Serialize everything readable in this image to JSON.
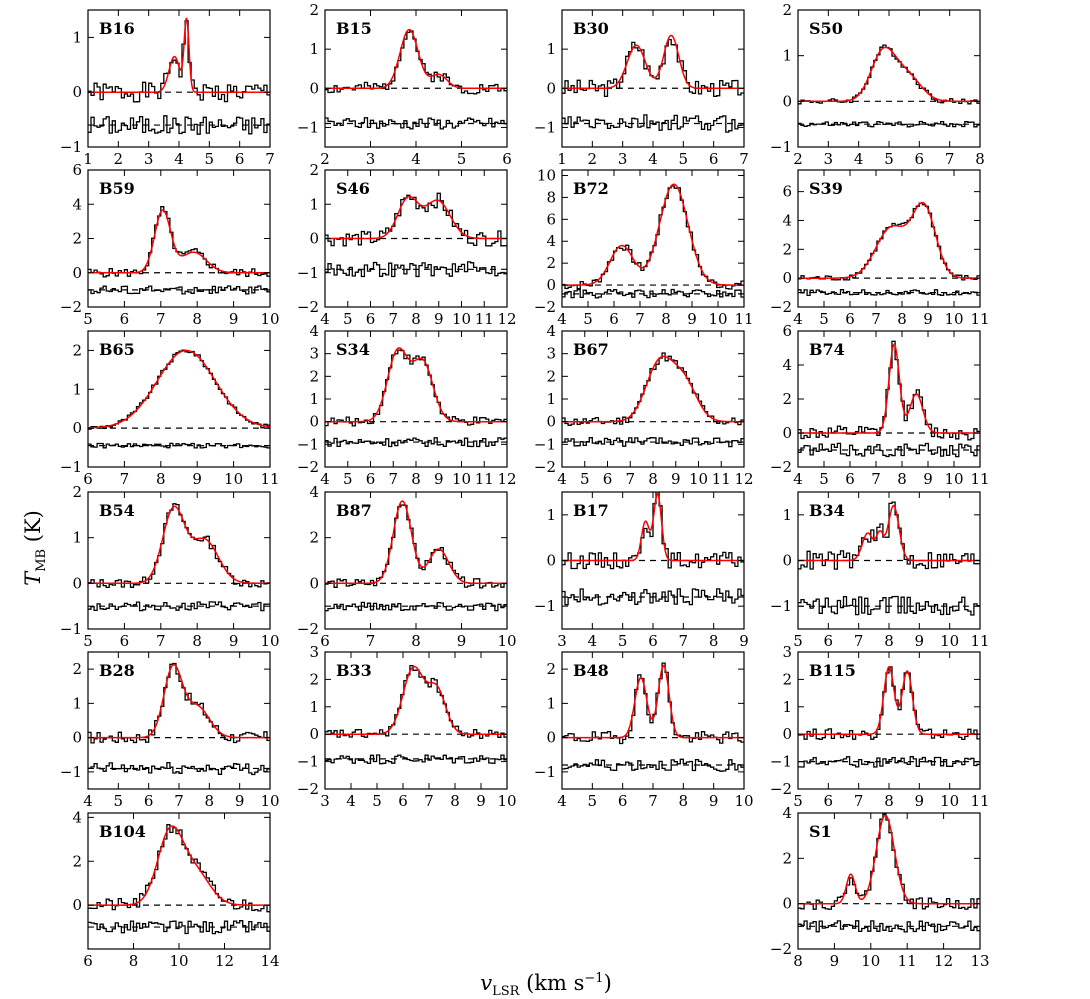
{
  "figure": {
    "ylabel_main": "T",
    "ylabel_sub": "MB",
    "ylabel_unit": " (K)",
    "xlabel_main": "v",
    "xlabel_sub": "LSR",
    "xlabel_unit": " (km s",
    "xlabel_exp": "−1",
    "xlabel_close": ")"
  },
  "colors": {
    "data": "#000000",
    "fit": "#ff0000",
    "zero": "#000000"
  },
  "chart_data": [
    {
      "type": "line",
      "title": "B16",
      "xlim": [
        1,
        7
      ],
      "ylim": [
        -1,
        1.5
      ],
      "xticks": [
        1,
        2,
        3,
        4,
        5,
        6,
        7
      ],
      "yticks": [
        -1,
        0,
        1
      ],
      "residual_offset": -0.6,
      "fit": [
        {
          "mu": 3.85,
          "sig": 0.18,
          "amp": 0.65
        },
        {
          "mu": 4.25,
          "sig": 0.08,
          "amp": 1.3
        }
      ],
      "noise": 0.18,
      "seed": 1
    },
    {
      "type": "line",
      "title": "B15",
      "xlim": [
        2,
        6
      ],
      "ylim": [
        -1.5,
        2
      ],
      "xticks": [
        2,
        3,
        4,
        5,
        6
      ],
      "yticks": [
        -1,
        0,
        1,
        2
      ],
      "residual_offset": -0.9,
      "fit": [
        {
          "mu": 3.85,
          "sig": 0.2,
          "amp": 1.5
        },
        {
          "mu": 4.5,
          "sig": 0.18,
          "amp": 0.35
        }
      ],
      "noise": 0.15,
      "seed": 2
    },
    {
      "type": "line",
      "title": "B30",
      "xlim": [
        1,
        7
      ],
      "ylim": [
        -1.5,
        2
      ],
      "xticks": [
        1,
        2,
        3,
        4,
        5,
        6,
        7
      ],
      "yticks": [
        -1,
        0,
        1
      ],
      "residual_offset": -0.9,
      "fit": [
        {
          "mu": 3.45,
          "sig": 0.3,
          "amp": 1.1
        },
        {
          "mu": 4.6,
          "sig": 0.25,
          "amp": 1.35
        }
      ],
      "noise": 0.22,
      "seed": 3
    },
    {
      "type": "line",
      "title": "S50",
      "xlim": [
        2,
        8
      ],
      "ylim": [
        -1,
        2
      ],
      "xticks": [
        2,
        3,
        4,
        5,
        6,
        7,
        8
      ],
      "yticks": [
        -1,
        0,
        1,
        2
      ],
      "residual_offset": -0.5,
      "fit": [
        {
          "mu": 4.8,
          "sig": 0.4,
          "amp": 1.05
        },
        {
          "mu": 5.6,
          "sig": 0.45,
          "amp": 0.55
        }
      ],
      "noise": 0.06,
      "seed": 4
    },
    {
      "type": "line",
      "title": "B59",
      "xlim": [
        5,
        10
      ],
      "ylim": [
        -2,
        6
      ],
      "xticks": [
        5,
        6,
        7,
        8,
        9,
        10
      ],
      "yticks": [
        -2,
        0,
        2,
        4,
        6
      ],
      "residual_offset": -1.0,
      "fit": [
        {
          "mu": 7.05,
          "sig": 0.22,
          "amp": 3.6
        },
        {
          "mu": 7.9,
          "sig": 0.35,
          "amp": 1.2
        }
      ],
      "noise": 0.25,
      "seed": 5
    },
    {
      "type": "line",
      "title": "S46",
      "xlim": [
        4,
        12
      ],
      "ylim": [
        -2,
        2
      ],
      "xticks": [
        4,
        5,
        6,
        7,
        8,
        9,
        10,
        11,
        12
      ],
      "yticks": [
        -2,
        -1,
        0,
        1,
        2
      ],
      "residual_offset": -0.9,
      "fit": [
        {
          "mu": 7.65,
          "sig": 0.45,
          "amp": 1.15
        },
        {
          "mu": 8.95,
          "sig": 0.55,
          "amp": 1.1
        }
      ],
      "noise": 0.22,
      "seed": 6
    },
    {
      "type": "line",
      "title": "B72",
      "xlim": [
        4,
        11
      ],
      "ylim": [
        -2,
        10.5
      ],
      "xticks": [
        4,
        5,
        6,
        7,
        8,
        9,
        10,
        11
      ],
      "yticks": [
        -2,
        0,
        2,
        4,
        6,
        8,
        10
      ],
      "residual_offset": -0.8,
      "fit": [
        {
          "mu": 6.3,
          "sig": 0.45,
          "amp": 3.6
        },
        {
          "mu": 8.3,
          "sig": 0.55,
          "amp": 9.2
        }
      ],
      "noise": 0.4,
      "seed": 7
    },
    {
      "type": "line",
      "title": "S39",
      "xlim": [
        4,
        11
      ],
      "ylim": [
        -2,
        7.5
      ],
      "xticks": [
        4,
        5,
        6,
        7,
        8,
        9,
        10,
        11
      ],
      "yticks": [
        -2,
        0,
        2,
        4,
        6
      ],
      "residual_offset": -1.0,
      "fit": [
        {
          "mu": 7.6,
          "sig": 0.6,
          "amp": 3.5
        },
        {
          "mu": 8.85,
          "sig": 0.45,
          "amp": 4.8
        }
      ],
      "noise": 0.2,
      "seed": 8
    },
    {
      "type": "line",
      "title": "B65",
      "xlim": [
        6,
        11
      ],
      "ylim": [
        -1,
        2.5
      ],
      "xticks": [
        6,
        7,
        8,
        9,
        10,
        11
      ],
      "yticks": [
        -1,
        0,
        1,
        2
      ],
      "residual_offset": -0.45,
      "fit": [
        {
          "mu": 8.7,
          "sig": 0.8,
          "amp": 2.0
        }
      ],
      "noise": 0.06,
      "seed": 9
    },
    {
      "type": "line",
      "title": "S34",
      "xlim": [
        4,
        12
      ],
      "ylim": [
        -2,
        4
      ],
      "xticks": [
        4,
        5,
        6,
        7,
        8,
        9,
        10,
        11,
        12
      ],
      "yticks": [
        -2,
        -1,
        0,
        1,
        2,
        3,
        4
      ],
      "residual_offset": -0.9,
      "fit": [
        {
          "mu": 7.2,
          "sig": 0.45,
          "amp": 3.1
        },
        {
          "mu": 8.3,
          "sig": 0.45,
          "amp": 2.6
        }
      ],
      "noise": 0.2,
      "seed": 10
    },
    {
      "type": "line",
      "title": "B67",
      "xlim": [
        4,
        12
      ],
      "ylim": [
        -2,
        4
      ],
      "xticks": [
        4,
        5,
        6,
        7,
        8,
        9,
        10,
        11,
        12
      ],
      "yticks": [
        -2,
        -1,
        0,
        1,
        2,
        3,
        4
      ],
      "residual_offset": -0.9,
      "fit": [
        {
          "mu": 8.3,
          "sig": 0.6,
          "amp": 2.6
        },
        {
          "mu": 9.4,
          "sig": 0.55,
          "amp": 1.6
        }
      ],
      "noise": 0.2,
      "seed": 11
    },
    {
      "type": "line",
      "title": "B74",
      "xlim": [
        4,
        11
      ],
      "ylim": [
        -2,
        6
      ],
      "xticks": [
        4,
        5,
        6,
        7,
        8,
        9,
        10,
        11
      ],
      "yticks": [
        -2,
        0,
        2,
        4,
        6
      ],
      "residual_offset": -1.0,
      "fit": [
        {
          "mu": 7.7,
          "sig": 0.2,
          "amp": 5.2
        },
        {
          "mu": 8.55,
          "sig": 0.25,
          "amp": 2.3
        }
      ],
      "noise": 0.4,
      "seed": 12
    },
    {
      "type": "line",
      "title": "B54",
      "xlim": [
        5,
        10
      ],
      "ylim": [
        -1,
        2
      ],
      "xticks": [
        5,
        6,
        7,
        8,
        9,
        10
      ],
      "yticks": [
        -1,
        0,
        1,
        2
      ],
      "residual_offset": -0.5,
      "fit": [
        {
          "mu": 7.35,
          "sig": 0.3,
          "amp": 1.6
        },
        {
          "mu": 8.2,
          "sig": 0.38,
          "amp": 0.95
        }
      ],
      "noise": 0.1,
      "seed": 13
    },
    {
      "type": "line",
      "title": "B87",
      "xlim": [
        6,
        10
      ],
      "ylim": [
        -2,
        4
      ],
      "xticks": [
        6,
        7,
        8,
        9,
        10
      ],
      "yticks": [
        -2,
        0,
        2,
        4
      ],
      "residual_offset": -1.0,
      "fit": [
        {
          "mu": 7.7,
          "sig": 0.2,
          "amp": 3.6
        },
        {
          "mu": 8.5,
          "sig": 0.22,
          "amp": 1.5
        }
      ],
      "noise": 0.2,
      "seed": 14
    },
    {
      "type": "line",
      "title": "B17",
      "xlim": [
        3,
        9
      ],
      "ylim": [
        -1.5,
        1.5
      ],
      "xticks": [
        3,
        4,
        5,
        6,
        7,
        8,
        9
      ],
      "yticks": [
        -1,
        0,
        1
      ],
      "residual_offset": -0.8,
      "fit": [
        {
          "mu": 5.75,
          "sig": 0.13,
          "amp": 0.85
        },
        {
          "mu": 6.15,
          "sig": 0.13,
          "amp": 1.45
        }
      ],
      "noise": 0.18,
      "seed": 15
    },
    {
      "type": "line",
      "title": "B34",
      "xlim": [
        5,
        11
      ],
      "ylim": [
        -1.5,
        1.5
      ],
      "xticks": [
        5,
        6,
        7,
        8,
        9,
        10,
        11
      ],
      "yticks": [
        -1,
        0,
        1
      ],
      "residual_offset": -1.0,
      "fit": [
        {
          "mu": 7.3,
          "sig": 0.18,
          "amp": 0.6
        },
        {
          "mu": 7.7,
          "sig": 0.12,
          "amp": 0.55
        },
        {
          "mu": 8.15,
          "sig": 0.18,
          "amp": 1.2
        }
      ],
      "noise": 0.22,
      "seed": 16
    },
    {
      "type": "line",
      "title": "B28",
      "xlim": [
        4,
        10
      ],
      "ylim": [
        -1.5,
        2.5
      ],
      "xticks": [
        4,
        5,
        6,
        7,
        8,
        9,
        10
      ],
      "yticks": [
        -1,
        0,
        1,
        2
      ],
      "residual_offset": -0.9,
      "fit": [
        {
          "mu": 6.8,
          "sig": 0.3,
          "amp": 2.0
        },
        {
          "mu": 7.6,
          "sig": 0.4,
          "amp": 0.9
        }
      ],
      "noise": 0.18,
      "seed": 17
    },
    {
      "type": "line",
      "title": "B33",
      "xlim": [
        3,
        10
      ],
      "ylim": [
        -2,
        3
      ],
      "xticks": [
        3,
        4,
        5,
        6,
        7,
        8,
        9,
        10
      ],
      "yticks": [
        -2,
        -1,
        0,
        1,
        2,
        3
      ],
      "residual_offset": -0.9,
      "fit": [
        {
          "mu": 6.4,
          "sig": 0.4,
          "amp": 2.4
        },
        {
          "mu": 7.3,
          "sig": 0.35,
          "amp": 1.6
        }
      ],
      "noise": 0.18,
      "seed": 18
    },
    {
      "type": "line",
      "title": "B48",
      "xlim": [
        4,
        10
      ],
      "ylim": [
        -1.5,
        2.5
      ],
      "xticks": [
        4,
        5,
        6,
        7,
        8,
        9,
        10
      ],
      "yticks": [
        -1,
        0,
        1,
        2
      ],
      "residual_offset": -0.8,
      "fit": [
        {
          "mu": 6.6,
          "sig": 0.2,
          "amp": 1.75
        },
        {
          "mu": 7.35,
          "sig": 0.18,
          "amp": 2.1
        }
      ],
      "noise": 0.18,
      "seed": 19
    },
    {
      "type": "line",
      "title": "B115",
      "xlim": [
        5,
        11
      ],
      "ylim": [
        -2,
        3
      ],
      "xticks": [
        5,
        6,
        7,
        8,
        9,
        10,
        11
      ],
      "yticks": [
        -2,
        -1,
        0,
        1,
        2,
        3
      ],
      "residual_offset": -1.0,
      "fit": [
        {
          "mu": 8.0,
          "sig": 0.17,
          "amp": 2.45
        },
        {
          "mu": 8.6,
          "sig": 0.17,
          "amp": 2.3
        }
      ],
      "noise": 0.2,
      "seed": 20
    },
    {
      "type": "line",
      "title": "B104",
      "xlim": [
        6,
        14
      ],
      "ylim": [
        -2,
        4.2
      ],
      "xticks": [
        6,
        8,
        10,
        12,
        14
      ],
      "yticks": [
        0,
        2,
        4
      ],
      "residual_offset": -1.0,
      "fit": [
        {
          "mu": 9.6,
          "sig": 0.55,
          "amp": 3.2
        },
        {
          "mu": 10.7,
          "sig": 0.65,
          "amp": 1.5
        }
      ],
      "noise": 0.3,
      "seed": 21
    },
    {
      "type": "line",
      "title": "S1",
      "xlim": [
        8,
        13
      ],
      "ylim": [
        -2,
        4
      ],
      "xticks": [
        8,
        9,
        10,
        11,
        12,
        13
      ],
      "yticks": [
        -2,
        0,
        2,
        4
      ],
      "residual_offset": -1.0,
      "fit": [
        {
          "mu": 9.45,
          "sig": 0.12,
          "amp": 1.3
        },
        {
          "mu": 10.4,
          "sig": 0.25,
          "amp": 3.9
        }
      ],
      "noise": 0.25,
      "seed": 22
    }
  ]
}
